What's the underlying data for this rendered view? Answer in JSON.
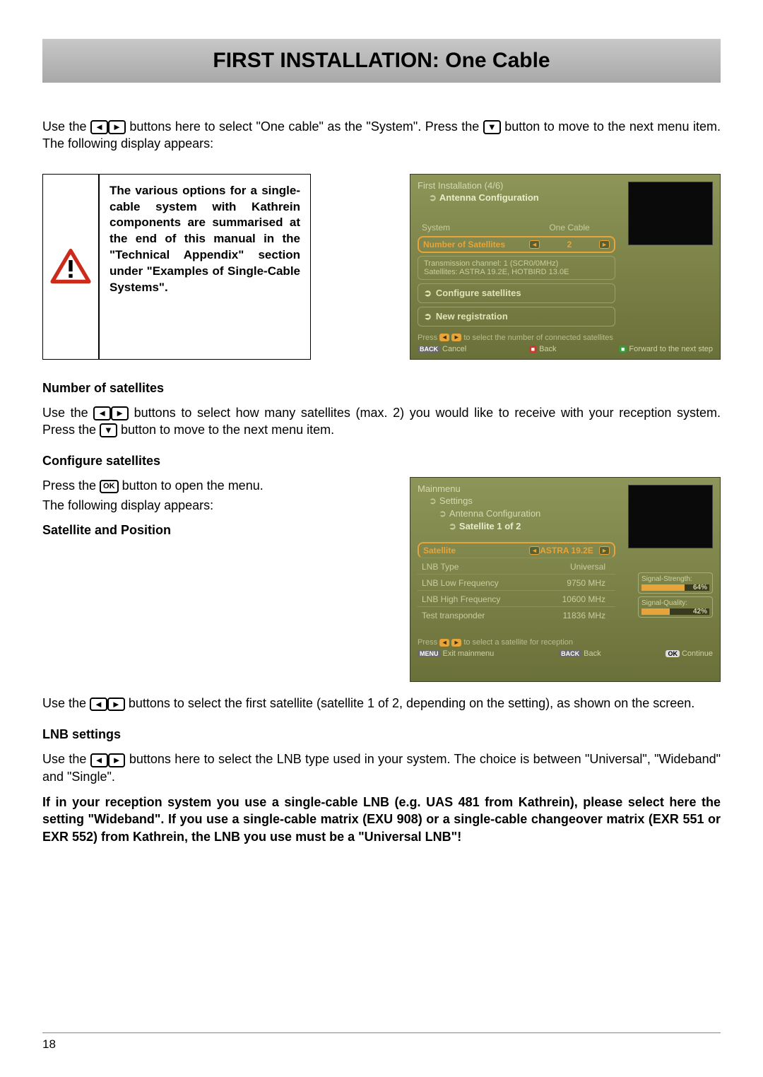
{
  "title": "FIRST INSTALLATION: One Cable",
  "intro_1a": "Use the ",
  "intro_1b": " buttons here to select \"One cable\" as the \"System\". Press the ",
  "intro_1c": " button to move to the next menu item. The following display appears:",
  "keys": {
    "left": "◄",
    "right": "►",
    "down": "▼",
    "ok": "OK"
  },
  "warn_note": "The various options for a single-cable system with Kathrein components are summarised at the end of this manual in the \"Technical Appendix\" section under \"Examples of Single-Cable Systems\".",
  "ss1": {
    "crumb1": "First Installation (4/6)",
    "crumb2": "Antenna Configuration",
    "system_label": "System",
    "system_value": "One Cable",
    "num_sat_label": "Number of Satellites",
    "num_sat_value": "2",
    "info_line1": "Transmission channel: 1  (SCR0/0MHz)",
    "info_line2": "Satellites: ASTRA 19.2E, HOTBIRD 13.0E",
    "menu1": "Configure satellites",
    "menu2": "New registration",
    "hint": "to select the number of connected satellites",
    "hint_prefix": "Press",
    "footer_cancel": "Cancel",
    "footer_back": "Back",
    "footer_forward": "Forward to the next step",
    "tag_back": "BACK"
  },
  "num_sat_h": "Number of satellites",
  "num_sat_p1a": "Use the ",
  "num_sat_p1b": " buttons to select how many satellites (max. 2) you would like to receive with your reception system. Press the ",
  "num_sat_p1c": " button to move to the next menu item.",
  "config_sat_h": "Configure satellites",
  "config_p1a": "Press the ",
  "config_p1b": " button to open the menu.",
  "config_p2": "The following display appears:",
  "sat_pos_h": "Satellite and Position",
  "ss2": {
    "crumb1": "Mainmenu",
    "crumb2": "Settings",
    "crumb3": "Antenna Configuration",
    "crumb4": "Satellite 1 of 2",
    "rows": [
      {
        "label": "Satellite",
        "value": "ASTRA 19.2E",
        "highlight": true,
        "arrows": true
      },
      {
        "label": "LNB Type",
        "value": "Universal"
      },
      {
        "label": "LNB Low Frequency",
        "value": "9750  MHz"
      },
      {
        "label": "LNB High Frequency",
        "value": "10600 MHz"
      },
      {
        "label": "Test transponder",
        "value": "11836 MHz"
      }
    ],
    "sig_strength_label": "Signal-Strength:",
    "sig_strength_val": "64%",
    "sig_strength_pct": 64,
    "sig_quality_label": "Signal-Quality:",
    "sig_quality_val": "42%",
    "sig_quality_pct": 42,
    "hint_prefix": "Press",
    "hint": "to select a satellite for reception",
    "footer_exit": "Exit mainmenu",
    "footer_back": "Back",
    "footer_continue": "Continue",
    "tag_menu": "MENU",
    "tag_back": "BACK",
    "tag_ok": "OK"
  },
  "after_ss2_a": "Use the ",
  "after_ss2_b": " buttons to select the first satellite (satellite 1 of 2, depending on the setting), as shown on the screen.",
  "lnb_h": "LNB settings",
  "lnb_p1a": "Use the ",
  "lnb_p1b": " buttons here to select the LNB type used in your system. The choice is between \"Universal\", \"Wideband\" and \"Single\".",
  "lnb_p2": "If in your reception system you use a single-cable LNB (e.g. UAS 481 from Kathrein), please select here the setting \"Wideband\". If you use a single-cable matrix (EXU 908) or a single-cable changeover matrix (EXR 551 or EXR 552) from Kathrein, the LNB you use must be a \"Universal LNB\"!",
  "page_num": "18",
  "colors": {
    "title_bg": "#b8b8b8",
    "ss_bg_top": "#8e9558",
    "ss_bg_bot": "#6a7039",
    "highlight": "#e6a43a",
    "ss_text": "#c8cda0"
  }
}
